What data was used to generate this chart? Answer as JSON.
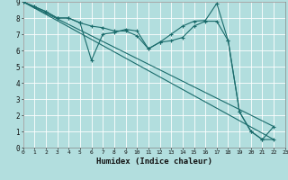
{
  "xlabel": "Humidex (Indice chaleur)",
  "bg_color": "#b2dede",
  "grid_color": "#d8f0f0",
  "line_color": "#1a6b6b",
  "xlim": [
    0,
    23
  ],
  "ylim": [
    0,
    9
  ],
  "xticks": [
    0,
    1,
    2,
    3,
    4,
    5,
    6,
    7,
    8,
    9,
    10,
    11,
    12,
    13,
    14,
    15,
    16,
    17,
    18,
    19,
    20,
    21,
    22,
    23
  ],
  "yticks": [
    0,
    1,
    2,
    3,
    4,
    5,
    6,
    7,
    8,
    9
  ],
  "line1_x": [
    0,
    1,
    2,
    3,
    4,
    5,
    6,
    7,
    8,
    9,
    10,
    11,
    12,
    13,
    14,
    15,
    16,
    17,
    18,
    19,
    20,
    21,
    22
  ],
  "line1_y": [
    9.0,
    8.7,
    8.4,
    8.0,
    8.0,
    7.7,
    7.5,
    7.4,
    7.2,
    7.2,
    6.9,
    6.1,
    6.5,
    6.6,
    6.8,
    7.5,
    7.8,
    7.8,
    6.6,
    2.2,
    1.0,
    0.5,
    0.5
  ],
  "line2_x": [
    0,
    1,
    2,
    3,
    4,
    5,
    6,
    7,
    8,
    9,
    10,
    11,
    12,
    13,
    14,
    15,
    16,
    17,
    18,
    19,
    20,
    21,
    22
  ],
  "line2_y": [
    9.0,
    8.7,
    8.4,
    8.0,
    8.0,
    7.7,
    5.4,
    7.0,
    7.1,
    7.3,
    7.2,
    6.1,
    6.5,
    7.0,
    7.5,
    7.8,
    7.85,
    8.9,
    6.6,
    2.2,
    1.0,
    0.5,
    1.3
  ],
  "line3_x": [
    0,
    22
  ],
  "line3_y": [
    9.0,
    0.5
  ],
  "line4_x": [
    0,
    22
  ],
  "line4_y": [
    9.0,
    1.3
  ]
}
